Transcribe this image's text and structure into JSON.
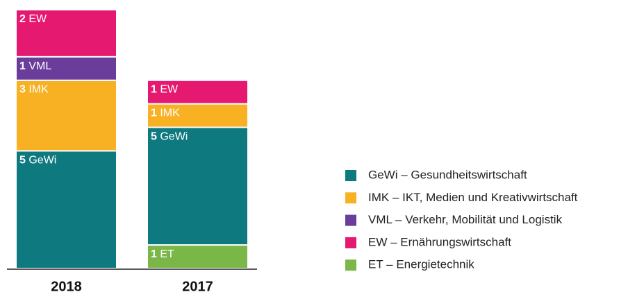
{
  "chart_data": {
    "type": "stacked_bar",
    "categories": [
      "2018",
      "2017"
    ],
    "ylim": [
      0,
      11
    ],
    "series": [
      {
        "name": "GeWi – Gesundheitswirtschaft",
        "short": "GeWi",
        "color": "#0e7a80",
        "values": [
          5,
          5
        ]
      },
      {
        "name": "IMK – IKT, Medien und Kreativwirtschaft",
        "short": "IMK",
        "color": "#f7b123",
        "values": [
          3,
          1
        ]
      },
      {
        "name": "VML – Verkehr, Mobilität und Logistik",
        "short": "VML",
        "color": "#6a3d9a",
        "values": [
          1,
          0
        ]
      },
      {
        "name": "EW – Ernährungswirtschaft",
        "short": "EW",
        "color": "#e5196f",
        "values": [
          2,
          1
        ]
      },
      {
        "name": "ET – Energietechnik",
        "short": "ET",
        "color": "#7ab648",
        "values": [
          0,
          1
        ]
      }
    ]
  }
}
